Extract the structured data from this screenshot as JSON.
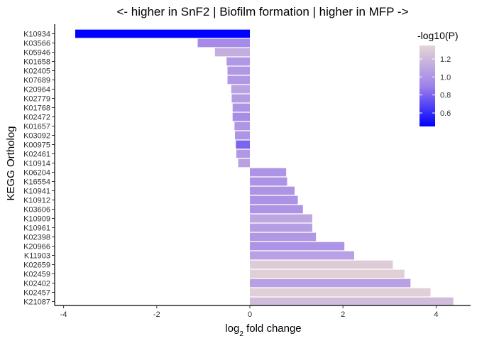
{
  "chart_data": {
    "type": "bar",
    "orientation": "horizontal",
    "title": "<- higher in SnF2 | Biofilm formation | higher in MFP ->",
    "xlabel_main": "log",
    "xlabel_sub": "2",
    "xlabel_rest": " fold change",
    "ylabel": "KEGG Ortholog",
    "xlim": [
      -4.0,
      4.8
    ],
    "x_ticks": [
      -4,
      -2,
      0,
      2,
      4
    ],
    "x_tick_labels": [
      "-4",
      "-2",
      "0",
      "2",
      "4"
    ],
    "grid": false,
    "legend": {
      "title": "-log10(P)",
      "position": "right-top",
      "min": 0.45,
      "max": 1.35,
      "ticks": [
        0.6,
        0.8,
        1.0,
        1.2
      ],
      "tick_labels": [
        "0.6",
        "0.8",
        "1.0",
        "1.2"
      ],
      "color_low": "#0000ff",
      "color_mid": "#9e82ea",
      "color_high": "#e5d5d5"
    },
    "categories": [
      "K10934",
      "K03566",
      "K05946",
      "K01658",
      "K02405",
      "K07689",
      "K20964",
      "K02779",
      "K01768",
      "K02472",
      "K01657",
      "K03092",
      "K00975",
      "K02461",
      "K10914",
      "K06204",
      "K16554",
      "K10941",
      "K10912",
      "K03606",
      "K10909",
      "K10961",
      "K02398",
      "K20966",
      "K11903",
      "K02659",
      "K02459",
      "K02402",
      "K02457",
      "K21087"
    ],
    "values": [
      -3.75,
      -1.12,
      -0.75,
      -0.5,
      -0.48,
      -0.48,
      -0.4,
      -0.39,
      -0.37,
      -0.37,
      -0.33,
      -0.32,
      -0.3,
      -0.29,
      -0.25,
      0.78,
      0.8,
      0.96,
      1.03,
      1.14,
      1.34,
      1.34,
      1.42,
      2.03,
      2.24,
      3.07,
      3.32,
      3.45,
      3.88,
      4.37
    ],
    "neglog10p": [
      0.45,
      0.95,
      1.14,
      1.02,
      1.02,
      1.02,
      1.08,
      1.04,
      1.0,
      0.96,
      1.01,
      1.0,
      0.8,
      1.02,
      1.07,
      1.0,
      0.99,
      1.0,
      0.99,
      1.0,
      1.1,
      1.05,
      1.02,
      1.0,
      1.06,
      1.3,
      1.32,
      1.06,
      1.32,
      1.22
    ]
  }
}
